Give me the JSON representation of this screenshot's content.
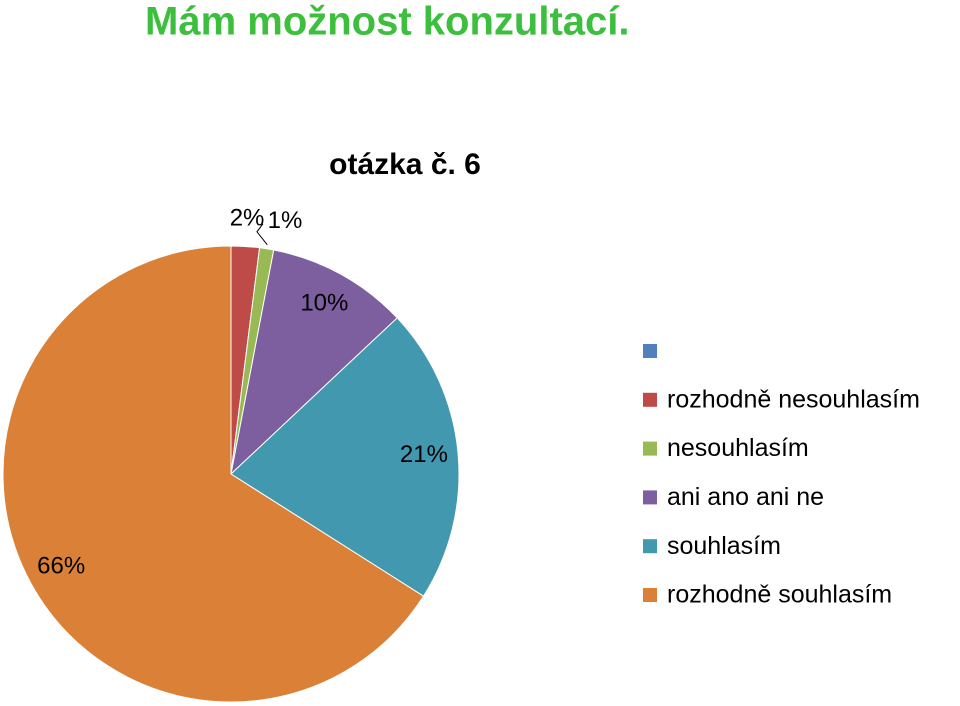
{
  "page_title": "Mám možnost konzultací.",
  "chart_data": {
    "type": "pie",
    "title": "otázka č. 6",
    "categories": [
      null,
      "rozhodně nesouhlasím",
      "nesouhlasím",
      "ani ano ani ne",
      "souhlasím",
      "rozhodně souhlasím"
    ],
    "values": [
      0,
      2,
      1,
      10,
      21,
      66
    ],
    "value_labels": [
      null,
      "2%",
      "1%",
      "10%",
      "21%",
      "66%"
    ],
    "colors": [
      "#4f81bd",
      "#be4b48",
      "#98b954",
      "#7d5fa0",
      "#4198af",
      "#da8137"
    ],
    "legend": "right"
  }
}
